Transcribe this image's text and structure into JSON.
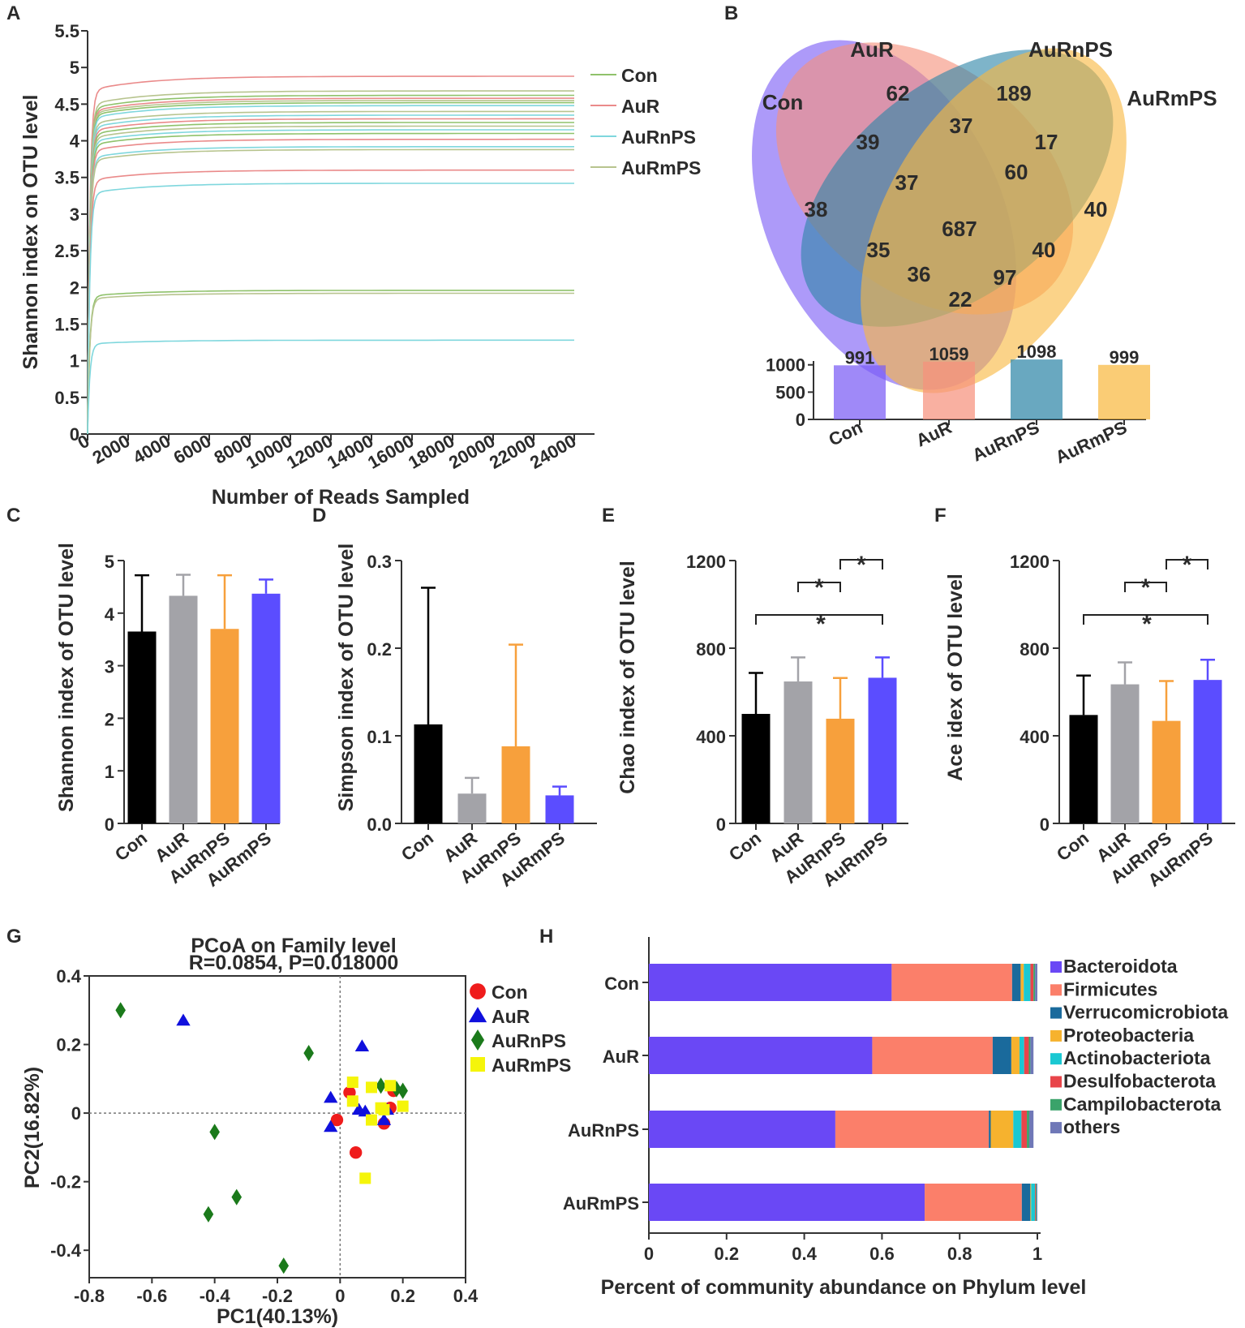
{
  "chart_data": [
    {
      "panel": "A",
      "type": "line",
      "ylabel": "Shannon index on OTU level",
      "xlabel": "Number of Reads Sampled",
      "xlim": [
        0,
        25000
      ],
      "ylim": [
        0,
        5.5
      ],
      "xticks": [
        "0",
        "2000",
        "4000",
        "6000",
        "8000",
        "10000",
        "12000",
        "14000",
        "16000",
        "18000",
        "20000",
        "22000",
        "24000"
      ],
      "yticks": [
        "0",
        "0.5",
        "1",
        "1.5",
        "2",
        "2.5",
        "3",
        "3.5",
        "4",
        "4.5",
        "5",
        "5.5"
      ],
      "x_end": 24000,
      "legend": [
        {
          "name": "Con",
          "color": "#8fc26b"
        },
        {
          "name": "AuR",
          "color": "#ea8a8a"
        },
        {
          "name": "AuRnPS",
          "color": "#7fd7dd"
        },
        {
          "name": "AuRmPS",
          "color": "#b7c48e"
        }
      ],
      "series": [
        {
          "group": "AuR",
          "plateau": 4.88,
          "color": "#ea8a8a"
        },
        {
          "group": "AuRmPS",
          "plateau": 4.68,
          "color": "#b7c48e"
        },
        {
          "group": "Con",
          "plateau": 4.62,
          "color": "#8fc26b"
        },
        {
          "group": "AuR",
          "plateau": 4.58,
          "color": "#ea8a8a"
        },
        {
          "group": "AuRmPS",
          "plateau": 4.55,
          "color": "#b7c48e"
        },
        {
          "group": "Con",
          "plateau": 4.52,
          "color": "#8fc26b"
        },
        {
          "group": "AuRnPS",
          "plateau": 4.48,
          "color": "#7fd7dd"
        },
        {
          "group": "AuRmPS",
          "plateau": 4.4,
          "color": "#b7c48e"
        },
        {
          "group": "AuRnPS",
          "plateau": 4.35,
          "color": "#7fd7dd"
        },
        {
          "group": "AuR",
          "plateau": 4.3,
          "color": "#ea8a8a"
        },
        {
          "group": "Con",
          "plateau": 4.25,
          "color": "#8fc26b"
        },
        {
          "group": "AuRmPS",
          "plateau": 4.2,
          "color": "#b7c48e"
        },
        {
          "group": "AuRnPS",
          "plateau": 4.15,
          "color": "#7fd7dd"
        },
        {
          "group": "Con",
          "plateau": 4.1,
          "color": "#8fc26b"
        },
        {
          "group": "AuR",
          "plateau": 4.02,
          "color": "#ea8a8a"
        },
        {
          "group": "AuRnPS",
          "plateau": 3.92,
          "color": "#7fd7dd"
        },
        {
          "group": "AuRmPS",
          "plateau": 3.88,
          "color": "#b7c48e"
        },
        {
          "group": "AuR",
          "plateau": 3.6,
          "color": "#ea8a8a"
        },
        {
          "group": "AuRnPS",
          "plateau": 3.42,
          "color": "#7fd7dd"
        },
        {
          "group": "Con",
          "plateau": 1.96,
          "color": "#8fc26b"
        },
        {
          "group": "AuRmPS",
          "plateau": 1.92,
          "color": "#b7c48e"
        },
        {
          "group": "AuRnPS",
          "plateau": 1.28,
          "color": "#7fd7dd"
        }
      ]
    },
    {
      "panel": "B",
      "type": "venn",
      "sets": [
        "Con",
        "AuR",
        "AuRnPS",
        "AuRmPS"
      ],
      "colors": [
        "#7a5cf5",
        "#f6917d",
        "#2f86a8",
        "#f8b840"
      ],
      "region_values": [
        "62",
        "189",
        "38",
        "40",
        "39",
        "37",
        "17",
        "37",
        "60",
        "687",
        "35",
        "40",
        "36",
        "97",
        "22"
      ],
      "bar": {
        "type": "bar",
        "categories": [
          "Con",
          "AuR",
          "AuRnPS",
          "AuRmPS"
        ],
        "values": [
          991,
          1059,
          1098,
          999
        ],
        "labels": [
          "991",
          "1059",
          "1098",
          "999"
        ],
        "ylim": [
          0,
          1100
        ],
        "yticks": [
          "0",
          "500",
          "1000"
        ]
      }
    },
    {
      "panel": "C",
      "type": "bar",
      "categories": [
        "Con",
        "AuR",
        "AuRnPS",
        "AuRmPS"
      ],
      "values": [
        3.65,
        4.33,
        3.7,
        4.37
      ],
      "errors": [
        1.07,
        0.4,
        1.02,
        0.27
      ],
      "colors": [
        "#000000",
        "#a3a3a8",
        "#f7a03c",
        "#5b4dff"
      ],
      "ylabel": "Shannon index of OTU level",
      "ylim": [
        0,
        5
      ],
      "yticks": [
        "0",
        "1",
        "2",
        "3",
        "4",
        "5"
      ]
    },
    {
      "panel": "D",
      "type": "bar",
      "categories": [
        "Con",
        "AuR",
        "AuRnPS",
        "AuRmPS"
      ],
      "values": [
        0.113,
        0.034,
        0.088,
        0.032
      ],
      "errors": [
        0.156,
        0.018,
        0.116,
        0.01
      ],
      "colors": [
        "#000000",
        "#a3a3a8",
        "#f7a03c",
        "#5b4dff"
      ],
      "ylabel": "Simpson index of OTU level",
      "ylim": [
        0,
        0.3
      ],
      "yticks": [
        "0.0",
        "0.1",
        "0.2",
        "0.3"
      ]
    },
    {
      "panel": "E",
      "type": "bar",
      "categories": [
        "Con",
        "AuR",
        "AuRnPS",
        "AuRmPS"
      ],
      "values": [
        500,
        648,
        478,
        665
      ],
      "errors": [
        187,
        110,
        186,
        93
      ],
      "colors": [
        "#000000",
        "#a3a3a8",
        "#f7a03c",
        "#5b4dff"
      ],
      "ylabel": "Chao index of OTU level",
      "ylim": [
        0,
        1200
      ],
      "yticks": [
        "0",
        "400",
        "800",
        "1200"
      ],
      "significance": [
        {
          "from": 1,
          "to": 2,
          "label": "*"
        },
        {
          "from": 2,
          "to": 3,
          "label": "*"
        },
        {
          "from": 0,
          "to": 3,
          "label": "*"
        }
      ]
    },
    {
      "panel": "F",
      "type": "bar",
      "categories": [
        "Con",
        "AuR",
        "AuRnPS",
        "AuRmPS"
      ],
      "values": [
        495,
        635,
        468,
        655
      ],
      "errors": [
        180,
        100,
        182,
        92
      ],
      "colors": [
        "#000000",
        "#a3a3a8",
        "#f7a03c",
        "#5b4dff"
      ],
      "ylabel": "Ace idex of OTU level",
      "ylim": [
        0,
        1200
      ],
      "yticks": [
        "0",
        "400",
        "800",
        "1200"
      ],
      "significance": [
        {
          "from": 1,
          "to": 2,
          "label": "*"
        },
        {
          "from": 2,
          "to": 3,
          "label": "*"
        },
        {
          "from": 0,
          "to": 3,
          "label": "*"
        }
      ]
    },
    {
      "panel": "G",
      "type": "scatter",
      "title": "PCoA on Family level",
      "subtitle": "R=0.0854, P=0.018000",
      "xlabel": "PC1(40.13%)",
      "ylabel": "PC2(16.82%)",
      "xlim": [
        -0.8,
        0.4
      ],
      "ylim": [
        -0.48,
        0.4
      ],
      "xticks": [
        -0.8,
        -0.6,
        -0.4,
        -0.2,
        0,
        0.2,
        0.4
      ],
      "yticks": [
        -0.4,
        -0.2,
        0,
        0.2,
        0.4
      ],
      "series": [
        {
          "name": "Con",
          "marker": "circle",
          "color": "#ef1c1c",
          "points": [
            [
              0.03,
              0.06
            ],
            [
              -0.01,
              -0.02
            ],
            [
              0.05,
              -0.115
            ],
            [
              0.14,
              -0.03
            ],
            [
              0.16,
              0.015
            ],
            [
              0.17,
              0.065
            ]
          ]
        },
        {
          "name": "AuR",
          "marker": "triangle",
          "color": "#1010dd",
          "points": [
            [
              -0.5,
              0.27
            ],
            [
              0.07,
              0.195
            ],
            [
              -0.03,
              0.045
            ],
            [
              -0.03,
              -0.04
            ],
            [
              0.06,
              0.01
            ],
            [
              0.08,
              0.005
            ],
            [
              0.14,
              -0.02
            ],
            [
              0.15,
              0.01
            ]
          ]
        },
        {
          "name": "AuRnPS",
          "marker": "diamond",
          "color": "#1b7a1b",
          "points": [
            [
              -0.7,
              0.3
            ],
            [
              -0.1,
              0.175
            ],
            [
              -0.4,
              -0.055
            ],
            [
              -0.33,
              -0.245
            ],
            [
              -0.42,
              -0.295
            ],
            [
              -0.18,
              -0.445
            ],
            [
              0.13,
              0.08
            ],
            [
              0.18,
              0.07
            ],
            [
              0.2,
              0.065
            ]
          ]
        },
        {
          "name": "AuRmPS",
          "marker": "square",
          "color": "#f5f50a",
          "points": [
            [
              0.04,
              0.09
            ],
            [
              0.1,
              0.075
            ],
            [
              0.16,
              0.08
            ],
            [
              0.04,
              0.035
            ],
            [
              0.2,
              0.02
            ],
            [
              0.1,
              -0.02
            ],
            [
              0.13,
              0.015
            ],
            [
              0.08,
              -0.19
            ],
            [
              0.14,
              0.01
            ]
          ]
        }
      ]
    },
    {
      "panel": "H",
      "type": "bar",
      "orientation": "horizontal-stacked",
      "categories": [
        "Con",
        "AuR",
        "AuRnPS",
        "AuRmPS"
      ],
      "xlabel": "Percent of community abundance on Phylum level",
      "xlim": [
        0,
        1
      ],
      "xticks": [
        "0",
        "0.2",
        "0.4",
        "0.6",
        "0.8",
        "1"
      ],
      "series": [
        {
          "name": "Bacteroidota",
          "color": "#6a48f5",
          "values": [
            0.625,
            0.575,
            0.48,
            0.71
          ]
        },
        {
          "name": "Firmicutes",
          "color": "#fb7f6a",
          "values": [
            0.31,
            0.31,
            0.395,
            0.25
          ]
        },
        {
          "name": "Verrucomicrobiota",
          "color": "#1a6a9c",
          "values": [
            0.022,
            0.048,
            0.005,
            0.022
          ]
        },
        {
          "name": "Proteobacteria",
          "color": "#f6b22e",
          "values": [
            0.008,
            0.021,
            0.058,
            0.002
          ]
        },
        {
          "name": "Actinobacteriota",
          "color": "#1ac8d2",
          "values": [
            0.017,
            0.012,
            0.021,
            0.01
          ]
        },
        {
          "name": "Desulfobacterota",
          "color": "#e8454a",
          "values": [
            0.008,
            0.012,
            0.014,
            0.002
          ]
        },
        {
          "name": "Campilobacterota",
          "color": "#3aa36a",
          "values": [
            0.004,
            0.004,
            0.006,
            0.002
          ]
        },
        {
          "name": "others",
          "color": "#6f78b7",
          "values": [
            0.006,
            0.008,
            0.011,
            0.002
          ]
        }
      ]
    }
  ]
}
